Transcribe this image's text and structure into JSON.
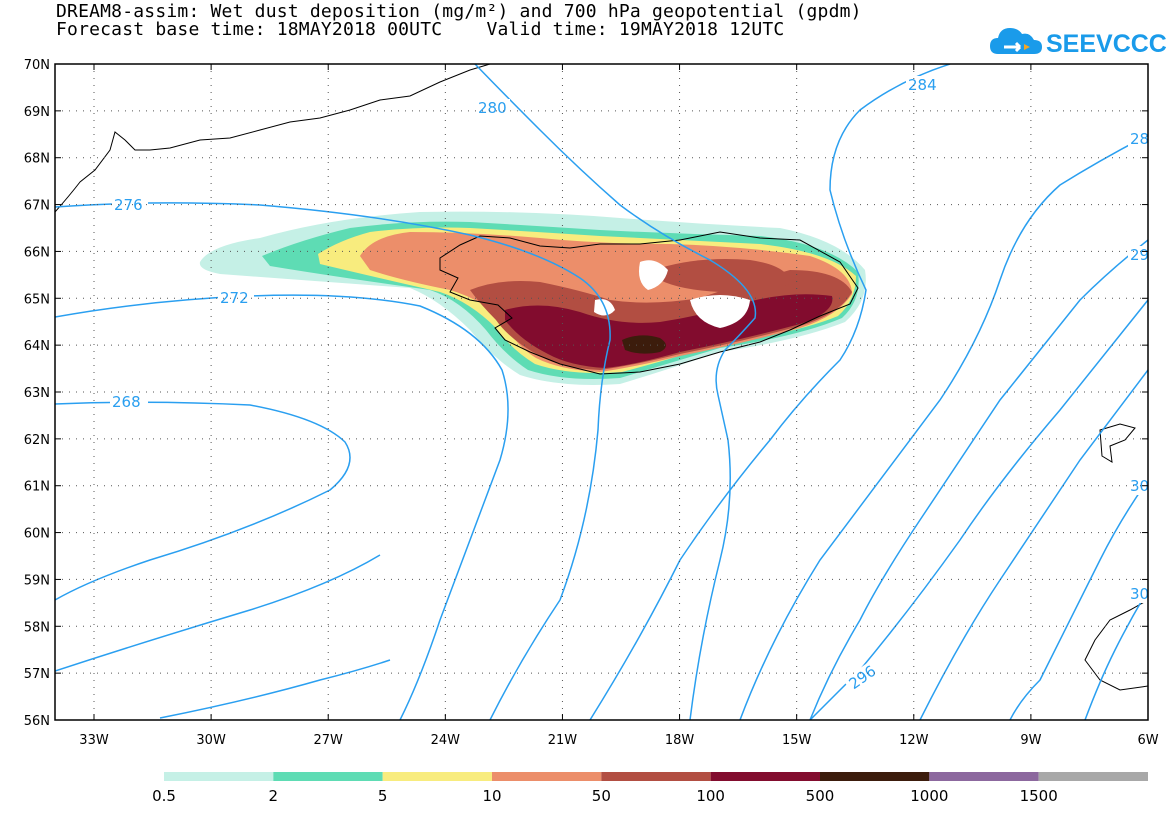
{
  "title": {
    "line1": "DREAM8-assim: Wet dust deposition (mg/m²) and 700 hPa geopotential (gpdm)",
    "line2": "Forecast base time: 18MAY2018 00UTC    Valid time: 19MAY2018 12UTC"
  },
  "logo": {
    "text": "SEEVCCC",
    "icon": "cloud-icon",
    "color": "#1a9bea"
  },
  "map": {
    "lat_labels": [
      "70N",
      "69N",
      "68N",
      "67N",
      "66N",
      "65N",
      "64N",
      "63N",
      "62N",
      "61N",
      "60N",
      "59N",
      "58N",
      "57N",
      "56N"
    ],
    "lon_labels": [
      "33W",
      "30W",
      "27W",
      "24W",
      "21W",
      "18W",
      "15W",
      "12W",
      "9W",
      "6W"
    ],
    "contour_color": "#2a9ff0",
    "contour_labels": [
      "280",
      "284",
      "28",
      "276",
      "272",
      "29",
      "268",
      "30",
      "296",
      "30"
    ]
  },
  "legend": {
    "labels": [
      "0.5",
      "2",
      "5",
      "10",
      "50",
      "100",
      "500",
      "1000",
      "1500"
    ],
    "colors": [
      "#c5f0e6",
      "#5edcb4",
      "#f8ec7e",
      "#ec8e6a",
      "#b24e42",
      "#820c2e",
      "#3c1c0c",
      "#8c689e",
      "#a8a8a8"
    ]
  }
}
